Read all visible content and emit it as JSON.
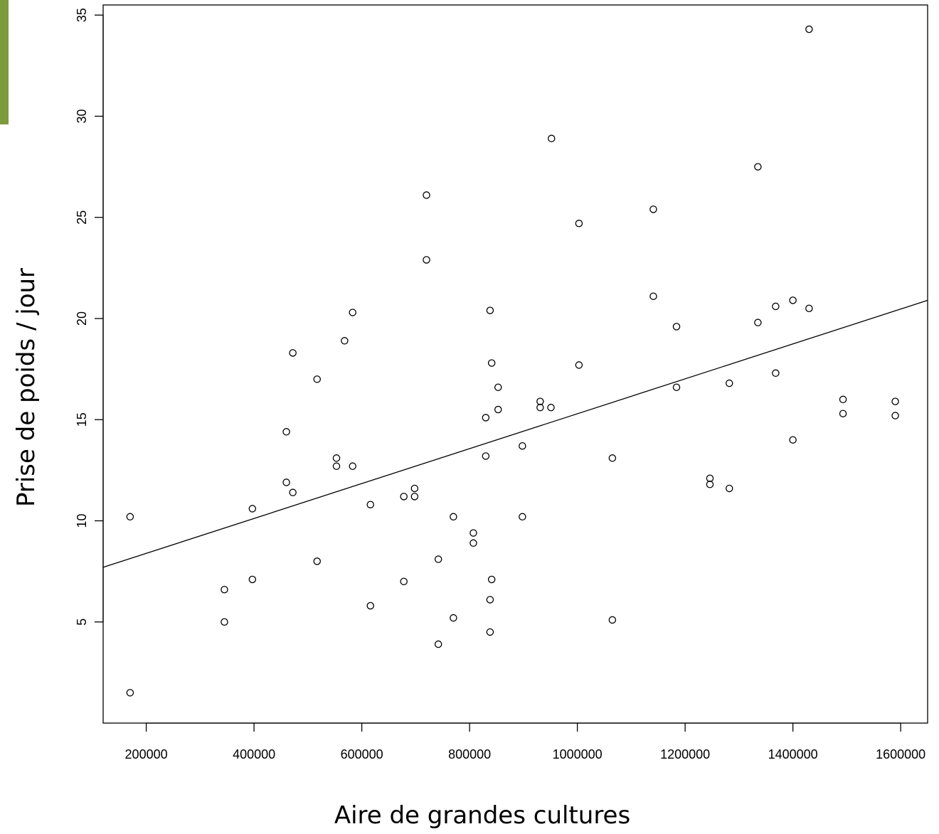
{
  "colors": {
    "accent": "#7d9a3c",
    "ink": "#000000",
    "background": "#ffffff"
  },
  "chart_data": {
    "type": "scatter",
    "title": "",
    "xlabel": "Aire de grandes cultures",
    "ylabel": "Prise de poids / jour",
    "xlim": [
      120000,
      1650000
    ],
    "ylim": [
      0,
      35.5
    ],
    "xticks": [
      200000,
      400000,
      600000,
      800000,
      1000000,
      1200000,
      1400000,
      1600000
    ],
    "yticks": [
      5,
      10,
      15,
      20,
      25,
      30,
      35
    ],
    "grid": false,
    "legend": "none",
    "regression_line": {
      "x": [
        120000,
        1650000
      ],
      "y": [
        7.7,
        20.9
      ]
    },
    "points": [
      [
        170000,
        10.2
      ],
      [
        170000,
        1.5
      ],
      [
        345000,
        6.6
      ],
      [
        345000,
        5.0
      ],
      [
        397000,
        10.6
      ],
      [
        397000,
        7.1
      ],
      [
        460000,
        14.4
      ],
      [
        460000,
        11.9
      ],
      [
        472000,
        18.3
      ],
      [
        472000,
        11.4
      ],
      [
        517000,
        17.0
      ],
      [
        517000,
        8.0
      ],
      [
        553000,
        13.1
      ],
      [
        553000,
        12.7
      ],
      [
        568000,
        18.9
      ],
      [
        583000,
        20.3
      ],
      [
        583000,
        12.7
      ],
      [
        616000,
        10.8
      ],
      [
        616000,
        5.8
      ],
      [
        678000,
        11.2
      ],
      [
        678000,
        7.0
      ],
      [
        698000,
        11.6
      ],
      [
        698000,
        11.2
      ],
      [
        720000,
        26.1
      ],
      [
        720000,
        22.9
      ],
      [
        742000,
        8.1
      ],
      [
        742000,
        3.9
      ],
      [
        770000,
        10.2
      ],
      [
        770000,
        5.2
      ],
      [
        807000,
        9.4
      ],
      [
        807000,
        8.9
      ],
      [
        830000,
        15.1
      ],
      [
        830000,
        13.2
      ],
      [
        838000,
        20.4
      ],
      [
        838000,
        6.1
      ],
      [
        838000,
        4.5
      ],
      [
        841000,
        17.8
      ],
      [
        841000,
        7.1
      ],
      [
        853000,
        16.6
      ],
      [
        853000,
        15.5
      ],
      [
        898000,
        13.7
      ],
      [
        898000,
        10.2
      ],
      [
        931000,
        15.9
      ],
      [
        931000,
        15.6
      ],
      [
        951000,
        15.6
      ],
      [
        952000,
        28.9
      ],
      [
        1003000,
        24.7
      ],
      [
        1003000,
        17.7
      ],
      [
        1065000,
        13.1
      ],
      [
        1065000,
        5.1
      ],
      [
        1141000,
        25.4
      ],
      [
        1141000,
        21.1
      ],
      [
        1184000,
        19.6
      ],
      [
        1184000,
        16.6
      ],
      [
        1246000,
        12.1
      ],
      [
        1246000,
        11.8
      ],
      [
        1282000,
        16.8
      ],
      [
        1282000,
        11.6
      ],
      [
        1335000,
        27.5
      ],
      [
        1335000,
        19.8
      ],
      [
        1368000,
        20.6
      ],
      [
        1368000,
        17.3
      ],
      [
        1400000,
        20.9
      ],
      [
        1400000,
        14.0
      ],
      [
        1430000,
        34.3
      ],
      [
        1430000,
        20.5
      ],
      [
        1493000,
        16.0
      ],
      [
        1493000,
        15.3
      ],
      [
        1590000,
        15.9
      ],
      [
        1590000,
        15.2
      ]
    ]
  }
}
